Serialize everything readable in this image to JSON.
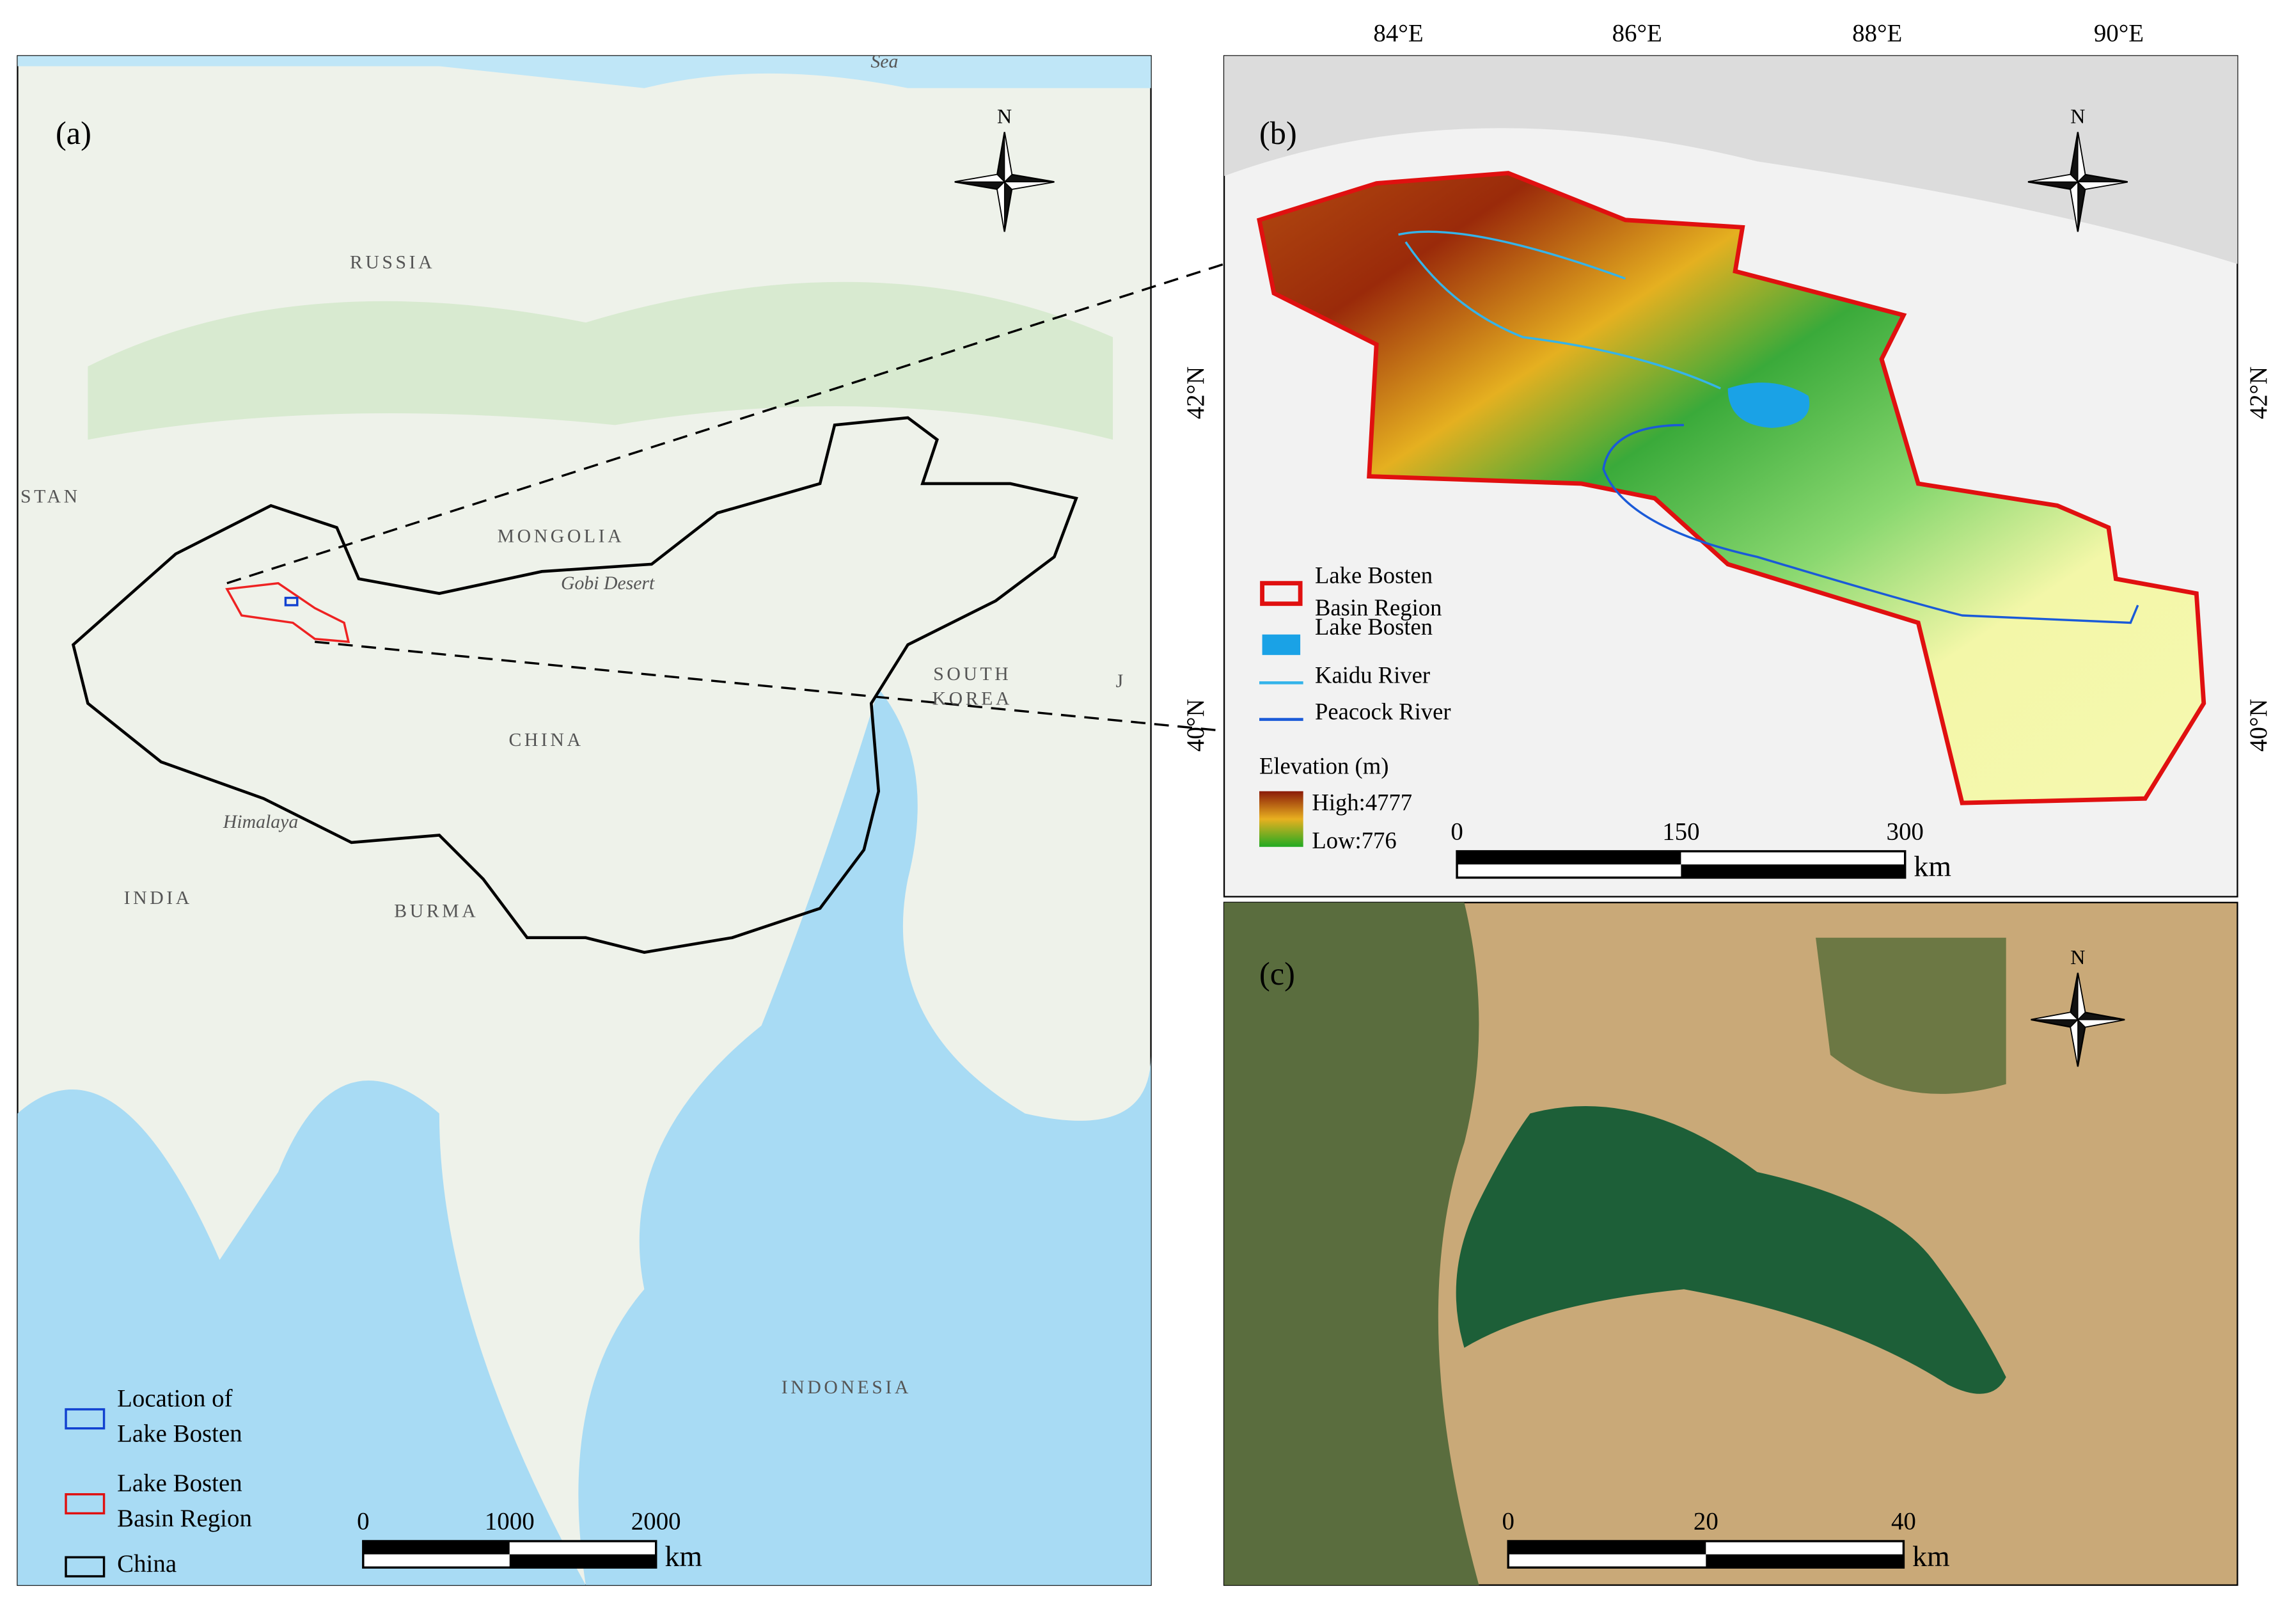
{
  "coordinates": {
    "top": [
      "84°E",
      "86°E",
      "88°E",
      "90°E"
    ],
    "left": [
      "42°N",
      "40°N"
    ],
    "right": [
      "42°N",
      "40°N"
    ]
  },
  "panel_a": {
    "label": "(a)",
    "north": "N",
    "places": [
      "RUSSIA",
      "MONGOLIA",
      "Gobi Desert",
      "CHINA",
      "STAN",
      "SOUTH",
      "KOREA",
      "J",
      "Himalaya",
      "INDIA",
      "BURMA",
      "INDONESIA",
      "Sea"
    ],
    "legend": [
      {
        "lines": [
          "Location of",
          "Lake Bosten"
        ]
      },
      {
        "lines": [
          "Lake Bosten",
          "Basin Region"
        ]
      },
      {
        "lines": [
          "China"
        ]
      }
    ],
    "scale": {
      "ticks": [
        0,
        1000,
        2000
      ],
      "unit": "km"
    }
  },
  "panel_b": {
    "label": "(b)",
    "north": "N",
    "legend": [
      {
        "lines": [
          "Lake Bosten",
          "Basin Region"
        ]
      },
      {
        "lines": [
          "Lake Bosten"
        ]
      },
      {
        "lines": [
          "Kaidu River"
        ]
      },
      {
        "lines": [
          "Peacock River"
        ]
      }
    ],
    "elevation": {
      "title": "Elevation (m)",
      "high": "High:4777",
      "low": "Low:776"
    },
    "scale": {
      "ticks": [
        0,
        150,
        300
      ],
      "unit": "km"
    }
  },
  "panel_c": {
    "label": "(c)",
    "north": "N",
    "scale": {
      "ticks": [
        0,
        20,
        40
      ],
      "unit": "km"
    }
  }
}
